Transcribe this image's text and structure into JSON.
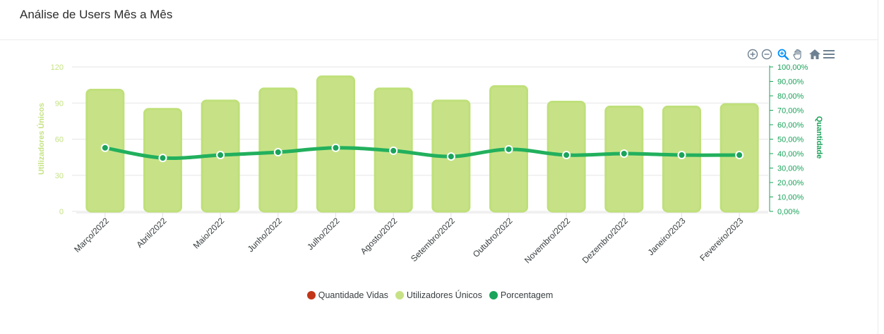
{
  "page": {
    "title": "Análise de Users Mês a Mês"
  },
  "toolbar": {
    "icons": [
      "zoom-in-icon",
      "zoom-out-icon",
      "selection-zoom-icon",
      "pan-hand-icon",
      "reset-home-icon",
      "menu-icon"
    ],
    "active_color": "#008ffb",
    "color": "#6e8192"
  },
  "colors": {
    "bar": "#c7e286",
    "bar_stroke": "#bfe07a",
    "line": "#22b05d",
    "left_axis": "#c5e383",
    "right_axis": "#1aa35a",
    "legend_quantidade": "#c23617",
    "legend_utilizadores": "#c7e286",
    "legend_porcentagem": "#1aa35a"
  },
  "chart_data": {
    "type": "bar",
    "categories": [
      "Março/2022",
      "Abril/2022",
      "Maio/2022",
      "Junho/2022",
      "Julho/2022",
      "Agosto/2022",
      "Setembro/2022",
      "Outubro/2022",
      "Novembro/2022",
      "Dezembro/2022",
      "Janeiro/2023",
      "Fevereiro/2023"
    ],
    "series": [
      {
        "name": "Utilizadores Únicos",
        "type": "bar",
        "axis": "left",
        "values": [
          101,
          85,
          92,
          102,
          112,
          102,
          92,
          104,
          91,
          87,
          87,
          89
        ]
      },
      {
        "name": "Porcentagem",
        "type": "line",
        "axis": "right",
        "values": [
          44,
          37,
          39,
          41,
          44,
          42,
          38,
          43,
          39,
          40,
          39,
          39
        ]
      }
    ],
    "legend": [
      "Quantidade Vidas",
      "Utilizadores Únicos",
      "Porcentagem"
    ],
    "legend_position": "bottom",
    "y_left": {
      "label": "Utilizadores Únicos",
      "ticks": [
        "0",
        "30",
        "60",
        "90",
        "120"
      ],
      "range": [
        0,
        120
      ]
    },
    "y_right": {
      "label": "Quantidade",
      "ticks": [
        "0,00%",
        "10,00%",
        "20,00%",
        "30,00%",
        "40,00%",
        "50,00%",
        "60,00%",
        "70,00%",
        "80,00%",
        "90,00%",
        "100,00%"
      ],
      "range": [
        0,
        100
      ]
    },
    "grid": true
  }
}
